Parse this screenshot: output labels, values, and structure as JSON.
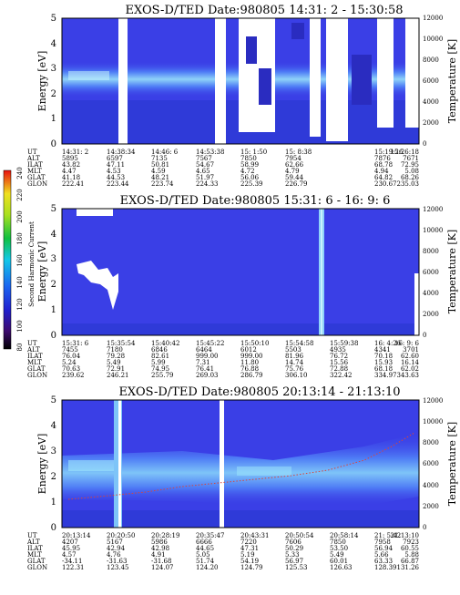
{
  "colors": {
    "background_blue": "#3a3fe6",
    "mid_blue": "#4f7df6",
    "light_blue": "#6cb8f8",
    "cyan": "#9ee6fb",
    "dark_blue": "#2a2cc0",
    "gap_white": "#ffffff",
    "scatter_red": "#d8463c"
  },
  "colorbar": {
    "label": "Second Harmonic Current",
    "ticks": [
      "240",
      "220",
      "200",
      "180",
      "160",
      "140",
      "120",
      "100",
      "80"
    ],
    "range": [
      80,
      240
    ]
  },
  "ephemeris_rows": [
    "UT",
    "ALT",
    "ILAT",
    "MLT",
    "GLAT",
    "GLON"
  ],
  "chart_data": [
    {
      "type": "heatmap",
      "title": "EXOS-D/TED  Date:980805  14:31: 2 - 15:30:58",
      "ylabel": "Energy [eV]",
      "y2label": "Temperature [K]",
      "ylim": [
        0,
        5
      ],
      "y2lim": [
        0,
        12000
      ],
      "yticks": [
        "0",
        "1",
        "2",
        "3",
        "4",
        "5"
      ],
      "y2ticks": [
        "0",
        "2000",
        "4000",
        "6000",
        "8000",
        "10000",
        "12000"
      ],
      "ephemeris": {
        "UT": [
          "14:31: 2",
          "14:38:34",
          "14:46: 6",
          "14:53:38",
          "15: 1:50",
          "15: 8:38",
          "",
          "15:19:26",
          "15:26:18"
        ],
        "ALT": [
          "5895",
          "6597",
          "7135",
          "7567",
          "7850",
          "7954",
          "",
          "7876",
          "7671"
        ],
        "ILAT": [
          "43.82",
          "47.11",
          "50.81",
          "54.67",
          "58.99",
          "62.66",
          "",
          "68.78",
          "72.95"
        ],
        "MLT": [
          "4.47",
          "4.53",
          "4.59",
          "4.65",
          "4.72",
          "4.79",
          "",
          "4.94",
          "5.08"
        ],
        "GLAT": [
          "41.18",
          "44.53",
          "48.21",
          "51.97",
          "56.06",
          "59.44",
          "",
          "64.82",
          "68.26"
        ],
        "GLON": [
          "222.41",
          "223.44",
          "223.74",
          "224.33",
          "225.39",
          "226.79",
          "",
          "230.67",
          "235.03"
        ]
      }
    },
    {
      "type": "heatmap",
      "title": "EXOS-D/TED  Date:980805  15:31: 6 - 16: 9: 6",
      "ylabel": "Energy [eV]",
      "y2label": "Temperature [K]",
      "ylim": [
        0,
        5
      ],
      "y2lim": [
        0,
        12000
      ],
      "yticks": [
        "0",
        "1",
        "2",
        "3",
        "4",
        "5"
      ],
      "y2ticks": [
        "0",
        "2000",
        "4000",
        "6000",
        "8000",
        "10000",
        "12000"
      ],
      "ephemeris": {
        "UT": [
          "15:31: 6",
          "15:35:54",
          "15:40:42",
          "15:45:22",
          "15:50:10",
          "15:54:58",
          "15:59:38",
          "16: 4:26",
          "16: 9: 6"
        ],
        "ALT": [
          "7455",
          "7180",
          "6846",
          "6464",
          "6012",
          "5503",
          "4935",
          "4341",
          "3701"
        ],
        "ILAT": [
          "76.04",
          "79.28",
          "82.61",
          "999.00",
          "999.00",
          "81.96",
          "76.72",
          "70.18",
          "62.60"
        ],
        "MLT": [
          "5.24",
          "5.49",
          "5.99",
          "7.31",
          "11.80",
          "14.74",
          "15.56",
          "15.93",
          "16.14"
        ],
        "GLAT": [
          "70.63",
          "72.91",
          "74.95",
          "76.41",
          "76.88",
          "75.76",
          "72.88",
          "68.18",
          "62.02"
        ],
        "GLON": [
          "239.62",
          "246.21",
          "255.79",
          "269.03",
          "286.79",
          "306.10",
          "322.42",
          "334.97",
          "343.63"
        ]
      }
    },
    {
      "type": "heatmap",
      "title": "EXOS-D/TED  Date:980805  20:13:14 - 21:13:10",
      "ylabel": "Energy [eV]",
      "y2label": "Temperature [K]",
      "ylim": [
        0,
        5
      ],
      "y2lim": [
        0,
        12000
      ],
      "yticks": [
        "0",
        "1",
        "2",
        "3",
        "4",
        "5"
      ],
      "y2ticks": [
        "0",
        "2000",
        "4000",
        "6000",
        "8000",
        "10000",
        "12000"
      ],
      "ephemeris": {
        "UT": [
          "20:13:14",
          "20:20:50",
          "20:28:19",
          "20:35:47",
          "20:43:31",
          "20:50:54",
          "20:58:14",
          "21: 5:42",
          "21:13:10"
        ],
        "ALT": [
          "4207",
          "5167",
          "5986",
          "6666",
          "7220",
          "7606",
          "7850",
          "7958",
          "7923"
        ],
        "ILAT": [
          "45.95",
          "42.94",
          "42.98",
          "44.65",
          "47.31",
          "50.29",
          "53.50",
          "56.94",
          "60.55"
        ],
        "MLT": [
          "4.57",
          "4.76",
          "4.91",
          "5.05",
          "5.19",
          "5.33",
          "5.49",
          "5.66",
          "5.88"
        ],
        "GLAT": [
          "-34.11",
          "-31.63",
          "-31.68",
          "51.74",
          "54.19",
          "56.97",
          "60.01",
          "63.33",
          "66.87"
        ],
        "GLON": [
          "122.31",
          "123.45",
          "124.07",
          "124.20",
          "124.79",
          "125.53",
          "126.63",
          "128.39",
          "131.26"
        ]
      }
    }
  ]
}
